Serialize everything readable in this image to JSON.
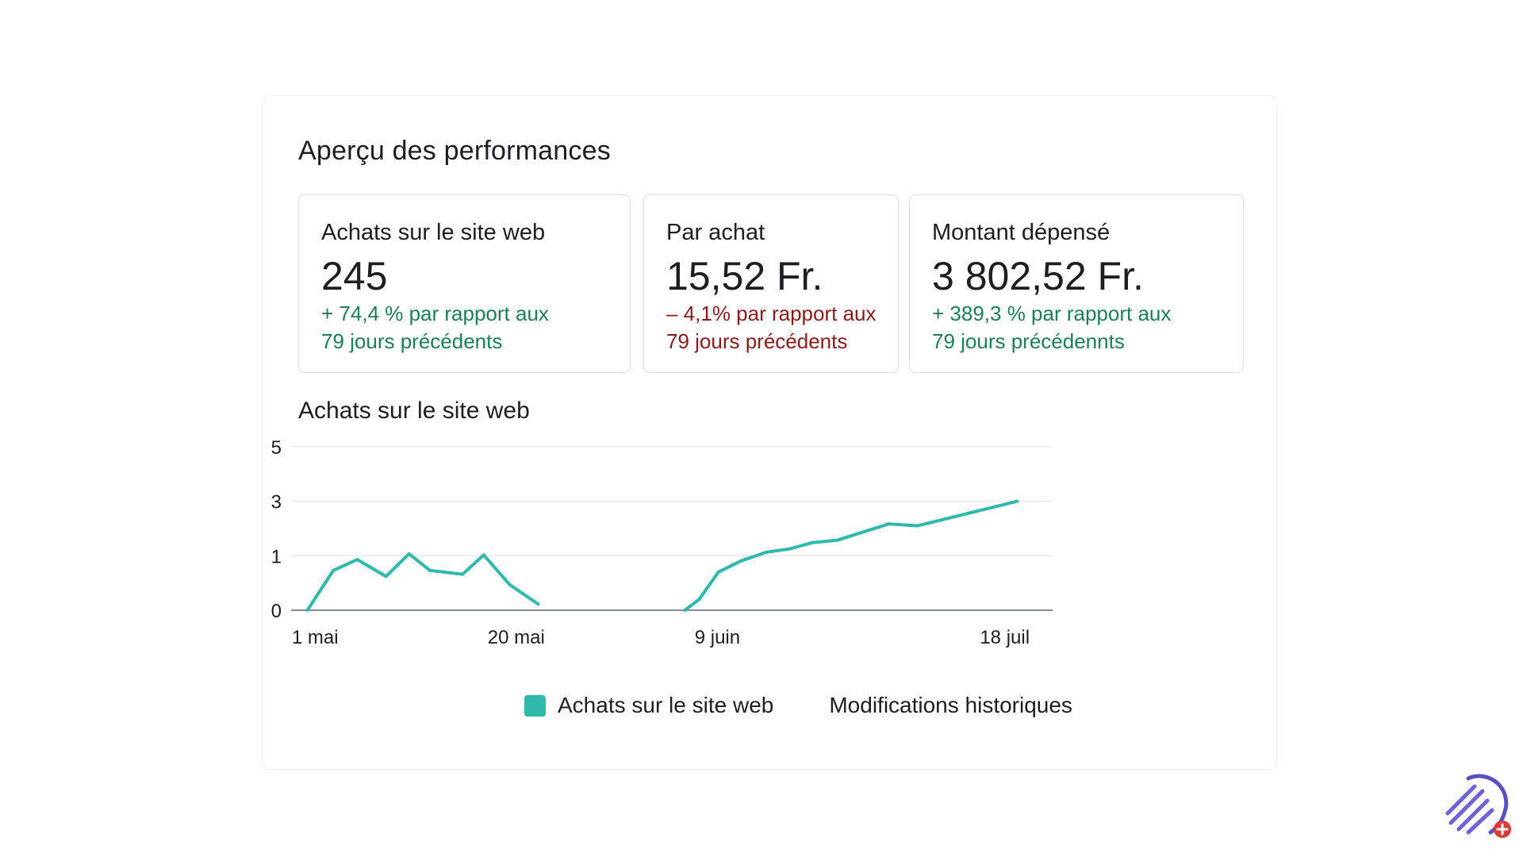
{
  "panel": {
    "title": "Aperçu des performances"
  },
  "metrics": [
    {
      "label": "Achats sur le site web",
      "value": "245",
      "change_line1": "+ 74,4 % par rapport aux",
      "change_line2": "79 jours précédents",
      "trend_color": "#1d7f55"
    },
    {
      "label": "Par achat",
      "value": "15,52 Fr.",
      "change_line1": "– 4,1% par rapport aux",
      "change_line2": "79 jours précédents",
      "trend_color": "#8b1a1a"
    },
    {
      "label": "Montant dépensé",
      "value": "3 802,52 Fr.",
      "change_line1": "+ 389,3 % par rapport aux",
      "change_line2": "79 jours précédennts",
      "trend_color": "#1d7f55"
    }
  ],
  "chart_data": {
    "type": "line",
    "title": "Achats sur le site web",
    "xlabel": "",
    "ylabel": "",
    "ylim": [
      0,
      5
    ],
    "y_ticks": [
      {
        "value": 0,
        "label": "0"
      },
      {
        "value": 1,
        "label": "1"
      },
      {
        "value": 3,
        "label": "3"
      },
      {
        "value": 5,
        "label": "5"
      }
    ],
    "x_range": [
      0,
      79
    ],
    "x_ticks": [
      {
        "x": 3,
        "label": "1 mai"
      },
      {
        "x": 24,
        "label": "20 mai"
      },
      {
        "x": 45,
        "label": "9 juin"
      },
      {
        "x": 75,
        "label": "18 juil"
      }
    ],
    "grid": true,
    "legend": "bottom-center",
    "series": [
      {
        "name": "Achats sur le site web",
        "color": "#2fb8ac",
        "segments": [
          [
            {
              "x": 2.2,
              "y": 0
            },
            {
              "x": 4.9,
              "y": 0.73
            },
            {
              "x": 7.4,
              "y": 0.93
            },
            {
              "x": 10.4,
              "y": 0.62
            },
            {
              "x": 12.8,
              "y": 1.07
            },
            {
              "x": 15.0,
              "y": 0.73
            },
            {
              "x": 18.4,
              "y": 0.66
            },
            {
              "x": 20.6,
              "y": 1.03
            },
            {
              "x": 23.3,
              "y": 0.47
            },
            {
              "x": 26.3,
              "y": 0.11
            }
          ],
          [
            {
              "x": 41.6,
              "y": 0
            },
            {
              "x": 43.1,
              "y": 0.2
            },
            {
              "x": 45.1,
              "y": 0.7
            },
            {
              "x": 47.4,
              "y": 0.9
            },
            {
              "x": 50.1,
              "y": 1.13
            },
            {
              "x": 52.5,
              "y": 1.25
            },
            {
              "x": 54.9,
              "y": 1.48
            },
            {
              "x": 57.5,
              "y": 1.57
            },
            {
              "x": 62.9,
              "y": 2.17
            },
            {
              "x": 65.9,
              "y": 2.1
            },
            {
              "x": 76.3,
              "y": 3.0
            }
          ]
        ]
      }
    ],
    "legend_items": [
      {
        "label": "Achats sur le site web",
        "color": "#2fb8ac"
      },
      {
        "label": "Modifications historiques"
      }
    ]
  },
  "colors": {
    "gridline": "#e4e6eb",
    "axis": "#606770",
    "text": "#1c1e21",
    "line": "#2fb8ac"
  },
  "branding": {
    "logo_icon": "rocket-swoosh-icon",
    "badge_icon": "plus-icon"
  }
}
